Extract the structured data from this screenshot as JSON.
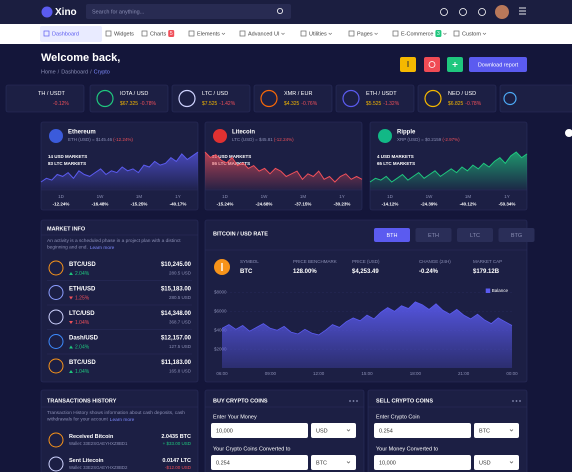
{
  "header": {
    "logo": "Xino",
    "search": "Search for anything..."
  },
  "nav": {
    "items": [
      {
        "label": "Dashboard"
      },
      {
        "label": "Widgets"
      },
      {
        "label": "Charts",
        "badge": 5
      },
      {
        "label": "Elements"
      },
      {
        "label": "Advanced UI"
      },
      {
        "label": "Utilities"
      },
      {
        "label": "Pages"
      },
      {
        "label": "E-Commerce",
        "badge": 3
      },
      {
        "label": "Custom"
      }
    ]
  },
  "page": {
    "title": "Welcome back,",
    "breadcrumb": [
      "Home",
      "Dashboard",
      "Crypto"
    ],
    "breadcrumb_separator": "/",
    "download": "Download report"
  },
  "tickers": [
    {
      "pair": "TH / USDT",
      "change": "-0.12%"
    },
    {
      "pair": "IOTA / USD",
      "price": "$67.325",
      "change": "-0.78%"
    },
    {
      "pair": "LTC / USD",
      "price": "$7.525",
      "change": "-1.42%"
    },
    {
      "pair": "XMR / EUR",
      "price": "$4.325",
      "change": "-0.76%"
    },
    {
      "pair": "ETH / USDT",
      "price": "$5.525",
      "change": "-1.32%"
    },
    {
      "pair": "NEO / USD",
      "price": "$6.825",
      "change": "-0.78%"
    }
  ],
  "coins": [
    {
      "name": "Ethereum",
      "quote": "ETH (USD) = $145.46",
      "change": "(-12.24%)",
      "markets": [
        "14 USD MARKETS",
        "83 LTC MARKETS"
      ],
      "periods": [
        {
          "label": "1D",
          "change": "-12.24%"
        },
        {
          "label": "1W",
          "change": "-16.48%"
        },
        {
          "label": "1M",
          "change": "-15.25%"
        },
        {
          "label": "1Y",
          "change": "-40.17%"
        }
      ]
    },
    {
      "name": "Litecoin",
      "quote": "LTC (USD) = $45.81",
      "change": "(-12.24%)",
      "markets": [
        "31 USD MARKETS",
        "86 LTC MARKETS"
      ],
      "periods": [
        {
          "label": "1D",
          "change": "-15.24%"
        },
        {
          "label": "1W",
          "change": "-24.68%"
        },
        {
          "label": "1M",
          "change": "-37.15%"
        },
        {
          "label": "1Y",
          "change": "-30.23%"
        }
      ]
    },
    {
      "name": "Ripple",
      "quote": "XRP (USD) = $0.2159",
      "change": "(-2.97%)",
      "markets": [
        "4 USD MARKETS",
        "65 LTC MARKETS"
      ],
      "periods": [
        {
          "label": "1D",
          "change": "-14.12%"
        },
        {
          "label": "1W",
          "change": "-24.39%"
        },
        {
          "label": "1M",
          "change": "-40.12%"
        },
        {
          "label": "1Y",
          "change": "-50.34%"
        }
      ]
    }
  ],
  "market_info": {
    "title": "MARKET INFO",
    "description": "An activity is a scheduled phase in a project plan with a distinct beginning and end.",
    "link": "Learn more",
    "rows": [
      {
        "pair": "BTC/USD",
        "change": "2.04%",
        "direction": "up",
        "price": "$10,245.00",
        "volume": "280.5 USD"
      },
      {
        "pair": "ETH/USD",
        "change": "1.25%",
        "direction": "down",
        "price": "$15,183.00",
        "volume": "280.5 USD"
      },
      {
        "pair": "LTC/USD",
        "change": "1.04%",
        "direction": "down",
        "price": "$14,348.00",
        "volume": "368.7 USD"
      },
      {
        "pair": "Dash/USD",
        "change": "2.04%",
        "direction": "up",
        "price": "$12,157.00",
        "volume": "127.5 USD"
      },
      {
        "pair": "BTC/USD",
        "change": "1.04%",
        "direction": "up",
        "price": "$11,183.00",
        "volume": "165.8 USD"
      }
    ]
  },
  "btc_panel": {
    "tabs": [
      "BTH",
      "ETH",
      "LTC",
      "BTG"
    ],
    "stats": [
      {
        "label": "SYMBOL",
        "value": "BTC"
      },
      {
        "label": "PRICE BENCHMARK",
        "value": "128.00%"
      },
      {
        "label": "PRICE (USD)",
        "value": "$4,253.49"
      },
      {
        "label": "CHANGE (24H)",
        "value": "-0.24%"
      },
      {
        "label": "MARKET CAP",
        "value": "$179.12B"
      }
    ]
  },
  "transactions": {
    "title": "TRANSACTIONS HISTORY",
    "description": "Transaction History shows information about cash deposits, cash withdrawals for your account",
    "link": "Learn more",
    "rows": [
      {
        "title": "Received Bitcoin",
        "wallet": "Wallet: 33E2SGAEYHXZ8BD1",
        "amount": "2.0435 BTC",
        "usd": "+ $33.00 USD"
      },
      {
        "title": "Sent Litecoin",
        "wallet": "Wallet: 33E2SGAEYHXZ8BD2",
        "amount": "0.0147 LTC",
        "usd": "-$12.00 USD"
      }
    ]
  },
  "buy": {
    "title": "BUY CRYPTO COINS",
    "fields": [
      {
        "label": "Enter Your Money",
        "value": "10,000",
        "unit": "USD"
      },
      {
        "label": "Your Crypto Coins Converted to",
        "value": "0.254",
        "unit": "BTC"
      }
    ]
  },
  "sell": {
    "title": "SELL CRYPTO COINS",
    "fields": [
      {
        "label": "Enter Crypto Coin",
        "value": "0.254",
        "unit": "BTC"
      },
      {
        "label": "Your Money Converted to",
        "value": "10,000",
        "unit": "USD"
      }
    ]
  },
  "chart_data": [
    {
      "type": "area",
      "color": "#5b5bf0",
      "values": [
        141,
        143,
        142,
        145,
        144,
        146,
        143,
        147,
        145,
        144,
        146,
        148,
        145,
        147,
        146,
        149,
        147,
        148,
        146,
        150,
        149,
        152,
        150,
        151,
        154,
        152,
        156,
        153,
        155,
        157
      ]
    },
    {
      "type": "area",
      "color": "#f0505a",
      "values": [
        52,
        50,
        51,
        49,
        48,
        50,
        47,
        48,
        46,
        47,
        45,
        46,
        44,
        46,
        45,
        43,
        44,
        45,
        42,
        44,
        43,
        45,
        42,
        43,
        41,
        43,
        44,
        42,
        43,
        42
      ]
    },
    {
      "type": "area",
      "color": "#1fc77e",
      "values": [
        0.205,
        0.207,
        0.206,
        0.208,
        0.205,
        0.207,
        0.209,
        0.206,
        0.208,
        0.21,
        0.207,
        0.209,
        0.211,
        0.208,
        0.21,
        0.212,
        0.21,
        0.213,
        0.211,
        0.214,
        0.212,
        0.215,
        0.213,
        0.216,
        0.218,
        0.215,
        0.219,
        0.221,
        0.218,
        0.22
      ]
    },
    {
      "type": "area",
      "title": "BITCOIN / USD RATE",
      "categories": [
        "06:00",
        null,
        null,
        null,
        null,
        null,
        null,
        "09:00",
        null,
        null,
        null,
        null,
        null,
        null,
        "12:00",
        null,
        null,
        null,
        null,
        null,
        null,
        "15:00",
        null,
        null,
        null,
        null,
        null,
        null,
        "18:00",
        null,
        null,
        null,
        null,
        null,
        null,
        "21:00",
        null,
        null,
        null,
        null,
        null,
        null,
        "00:00"
      ],
      "series": [
        {
          "name": "Balance",
          "color": "#5b5bf0",
          "values": [
            4200,
            4600,
            4100,
            4500,
            3900,
            4300,
            4700,
            4200,
            4000,
            4400,
            3800,
            3600,
            4100,
            3700,
            3500,
            4000,
            4600,
            4300,
            4900,
            5300,
            5000,
            5600,
            5200,
            5900,
            6400,
            6000,
            6600,
            6300,
            7000,
            6700,
            6200,
            6800,
            6100,
            5700,
            6200,
            5600,
            5200,
            5700,
            5100,
            4700,
            5300,
            4900,
            4500
          ]
        }
      ],
      "ylim": [
        0,
        9000
      ],
      "yticks": [
        {
          "value": 2000,
          "label": "$2000"
        },
        {
          "value": 4000,
          "label": "$4000"
        },
        {
          "value": 6000,
          "label": "$6000"
        },
        {
          "value": 8000,
          "label": "$8000"
        }
      ],
      "legend": "top-right"
    }
  ]
}
